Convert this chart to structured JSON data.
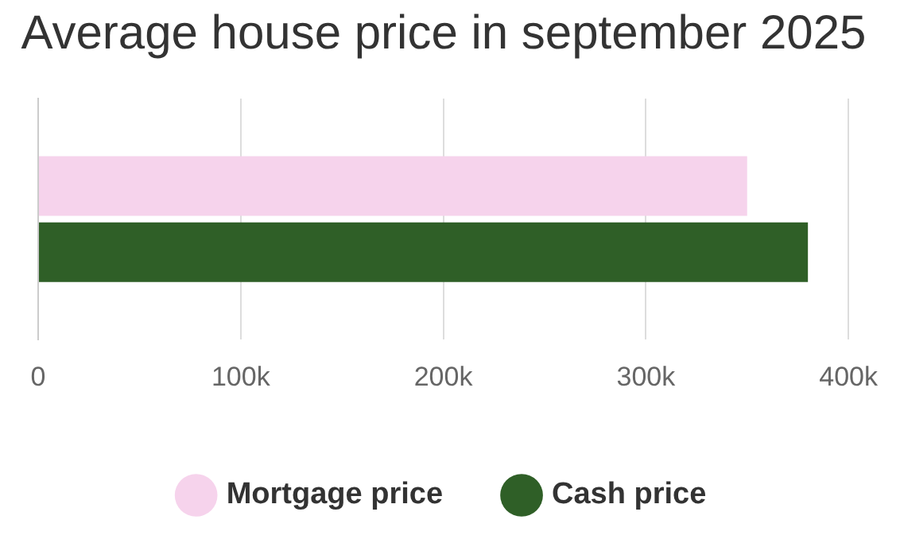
{
  "chart_data": {
    "type": "bar",
    "orientation": "horizontal",
    "title": "Average house price in september 2025",
    "categories": [
      null
    ],
    "series": [
      {
        "name": "Mortgage price",
        "color": "#f6d3ec",
        "values": [
          350000
        ]
      },
      {
        "name": "Cash price",
        "color": "#2f5f27",
        "values": [
          380000
        ]
      }
    ],
    "xlim": [
      0,
      400000
    ],
    "xticks": [
      0,
      {
        "value": 100000,
        "label": "100k"
      },
      {
        "value": 200000,
        "label": "200k"
      },
      {
        "value": 300000,
        "label": "300k"
      },
      {
        "value": 400000,
        "label": "400k"
      }
    ],
    "grid": "x",
    "legend": "bottom"
  }
}
